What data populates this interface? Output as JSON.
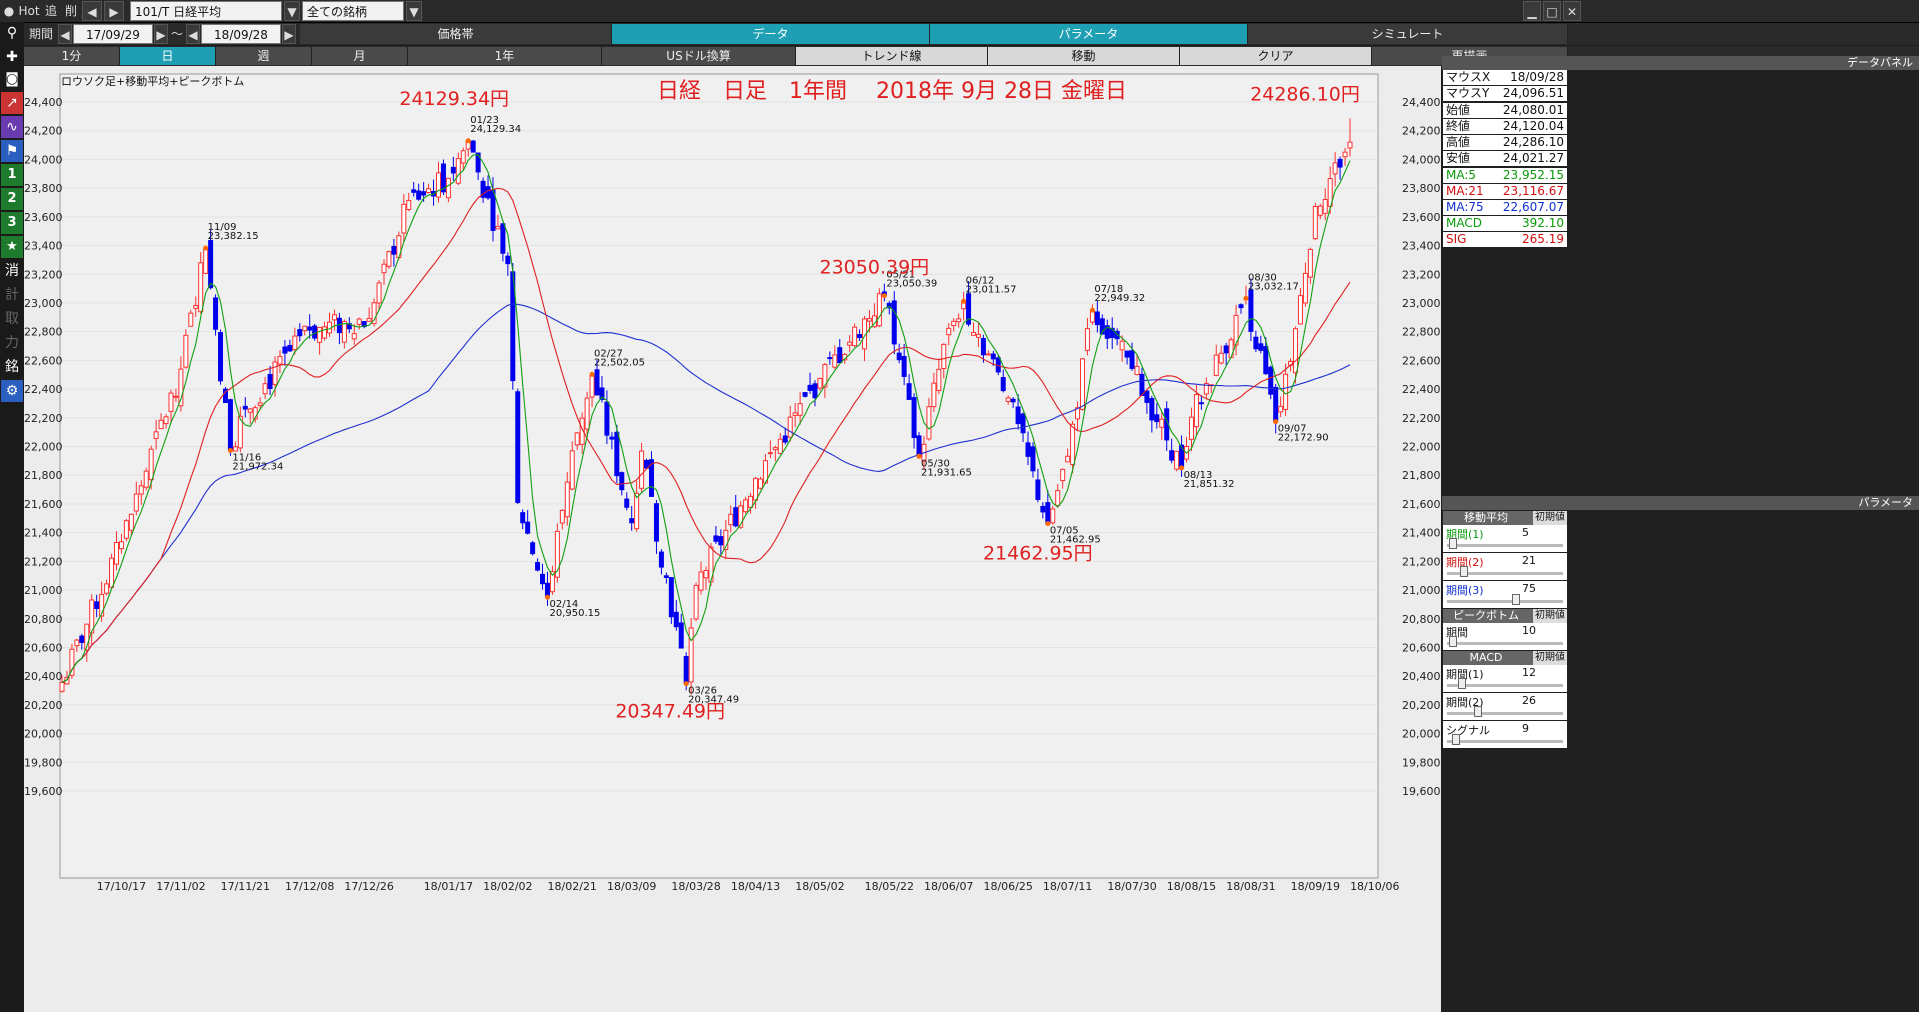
{
  "toolbar_top": {
    "app_label": "Hot",
    "btn_add": "追",
    "btn_del": "削",
    "symbol": "101/T 日経平均",
    "universe": "全ての銘柄"
  },
  "period_bar": {
    "label": "期間",
    "from": "17/09/29",
    "sep": "～",
    "to": "18/09/28"
  },
  "tabs": [
    "価格帯",
    "データ",
    "パラメータ",
    "シミュレート"
  ],
  "subtabs": [
    "1分",
    "日",
    "週",
    "月",
    "1年",
    "USドル換算",
    "トレンド線",
    "移動",
    "クリア",
    "再描画"
  ],
  "side_tools": [
    "search",
    "crosshair",
    "camera",
    "line-chart",
    "oscillator",
    "flag",
    "1",
    "2",
    "3",
    "star",
    "消",
    "銘"
  ],
  "side_tools_dim": [
    "計",
    "取",
    "力"
  ],
  "chart_data": {
    "type": "candlestick",
    "indicator_label": "ロウソク足+移動平均+ピークボトム",
    "title": "日経　日足　1年間　 2018年 9月 28日 金曜日",
    "ylim": [
      19600,
      24400
    ],
    "yticks": [
      "24,400",
      "24,200",
      "24,000",
      "23,800",
      "23,600",
      "23,400",
      "23,200",
      "23,000",
      "22,800",
      "22,600",
      "22,400",
      "22,200",
      "22,000",
      "21,800",
      "21,600",
      "21,400",
      "21,200",
      "21,000",
      "20,800",
      "20,600",
      "20,400",
      "20,200",
      "20,000",
      "19,800",
      "19,600"
    ],
    "xlabels": [
      "17/10/17",
      "17/11/02",
      "17/11/21",
      "17/12/08",
      "17/12/26",
      "18/01/17",
      "18/02/02",
      "18/02/21",
      "18/03/09",
      "18/03/28",
      "18/04/13",
      "18/05/02",
      "18/05/22",
      "18/06/07",
      "18/06/25",
      "18/07/11",
      "18/07/30",
      "18/08/15",
      "18/08/31",
      "18/09/19",
      "18/10/06"
    ],
    "series_colors": {
      "up": "#ff3030",
      "down": "#0000ee",
      "ma5": "#10a010",
      "ma21": "#e02020",
      "ma75": "#2030d0"
    },
    "peaks": [
      {
        "date": "11/09",
        "value": "23,382.15",
        "kind": "peak"
      },
      {
        "date": "11/16",
        "value": "21,972.34",
        "kind": "bottom"
      },
      {
        "date": "01/23",
        "value": "24,129.34",
        "kind": "peak"
      },
      {
        "date": "02/14",
        "value": "20,950.15",
        "kind": "bottom"
      },
      {
        "date": "02/27",
        "value": "22,502.05",
        "kind": "peak"
      },
      {
        "date": "03/26",
        "value": "20,347.49",
        "kind": "bottom"
      },
      {
        "date": "05/21",
        "value": "23,050.39",
        "kind": "peak"
      },
      {
        "date": "05/30",
        "value": "21,931.65",
        "kind": "bottom"
      },
      {
        "date": "06/12",
        "value": "23,011.57",
        "kind": "peak"
      },
      {
        "date": "07/05",
        "value": "21,462.95",
        "kind": "bottom"
      },
      {
        "date": "07/18",
        "value": "22,949.32",
        "kind": "peak"
      },
      {
        "date": "08/13",
        "value": "21,851.32",
        "kind": "bottom"
      },
      {
        "date": "08/30",
        "value": "23,032.17",
        "kind": "peak"
      },
      {
        "date": "09/07",
        "value": "22,172.90",
        "kind": "bottom"
      }
    ],
    "annotations": [
      {
        "text": "24129.34円",
        "anchor": "01/23"
      },
      {
        "text": "23050.39円",
        "anchor": "05/21"
      },
      {
        "text": "20347.49円",
        "anchor": "03/26"
      },
      {
        "text": "21462.95円",
        "anchor": "07/05"
      },
      {
        "text": "24286.10円",
        "anchor": "09/28"
      }
    ],
    "ohlc_keypoints": [
      [
        "17/09/29",
        20356
      ],
      [
        "17/10/17",
        21336
      ],
      [
        "17/11/02",
        22539
      ],
      [
        "17/11/09",
        23382
      ],
      [
        "17/11/16",
        21972
      ],
      [
        "17/11/21",
        22261
      ],
      [
        "17/12/08",
        22811
      ],
      [
        "17/12/26",
        22892
      ],
      [
        "18/01/05",
        23714
      ],
      [
        "18/01/17",
        23868
      ],
      [
        "18/01/23",
        24129
      ],
      [
        "18/02/02",
        23274
      ],
      [
        "18/02/06",
        21610
      ],
      [
        "18/02/14",
        20950
      ],
      [
        "18/02/21",
        21970
      ],
      [
        "18/02/27",
        22502
      ],
      [
        "18/03/09",
        21469
      ],
      [
        "18/03/13",
        21968
      ],
      [
        "18/03/26",
        20347
      ],
      [
        "18/03/28",
        21032
      ],
      [
        "18/04/13",
        21778
      ],
      [
        "18/05/02",
        22473
      ],
      [
        "18/05/21",
        23050
      ],
      [
        "18/05/30",
        21931
      ],
      [
        "18/06/07",
        22823
      ],
      [
        "18/06/12",
        23011
      ],
      [
        "18/06/25",
        22338
      ],
      [
        "18/07/05",
        21462
      ],
      [
        "18/07/11",
        21932
      ],
      [
        "18/07/18",
        22949
      ],
      [
        "18/07/30",
        22544
      ],
      [
        "18/08/13",
        21851
      ],
      [
        "18/08/15",
        22204
      ],
      [
        "18/08/30",
        23032
      ],
      [
        "18/09/07",
        22172
      ],
      [
        "18/09/13",
        22821
      ],
      [
        "18/09/19",
        23672
      ],
      [
        "18/09/28",
        24120
      ]
    ],
    "last_day": {
      "open": 24080.01,
      "high": 24286.1,
      "low": 24021.27,
      "close": 24120.04
    }
  },
  "data_panel": {
    "title": "データパネル",
    "rows": [
      {
        "k": "マウスX",
        "v": "18/09/28",
        "c": "#111"
      },
      {
        "k": "マウスY",
        "v": "24,096.51",
        "c": "#111"
      },
      {
        "k": "始値",
        "v": "24,080.01",
        "c": "#111"
      },
      {
        "k": "終値",
        "v": "24,120.04",
        "c": "#111"
      },
      {
        "k": "高値",
        "v": "24,286.10",
        "c": "#111"
      },
      {
        "k": "安値",
        "v": "24,021.27",
        "c": "#111"
      },
      {
        "k": "MA:5",
        "v": "23,952.15",
        "c": "#0a9a0a"
      },
      {
        "k": "MA:21",
        "v": "23,116.67",
        "c": "#d01010"
      },
      {
        "k": "MA:75",
        "v": "22,607.07",
        "c": "#1030d0"
      },
      {
        "k": "MACD",
        "v": "392.10",
        "c": "#0a9a0a"
      },
      {
        "k": "SIG",
        "v": "265.19",
        "c": "#d01010"
      }
    ]
  },
  "params_panel": {
    "title": "パラメータ",
    "reset": "初期値",
    "groups": [
      {
        "name": "移動平均",
        "rows": [
          {
            "k": "期間(1)",
            "v": "5",
            "c": "#0a9a0a",
            "level": 0.02
          },
          {
            "k": "期間(2)",
            "v": "21",
            "c": "#d01010",
            "level": 0.12
          },
          {
            "k": "期間(3)",
            "v": "75",
            "c": "#1030d0",
            "level": 0.6
          }
        ]
      },
      {
        "name": "ピークボトム",
        "rows": [
          {
            "k": "期間",
            "v": "10",
            "c": "#111",
            "level": 0.02
          }
        ]
      },
      {
        "name": "MACD",
        "rows": [
          {
            "k": "期間(1)",
            "v": "12",
            "c": "#111",
            "level": 0.1
          },
          {
            "k": "期間(2)",
            "v": "26",
            "c": "#111",
            "level": 0.25
          },
          {
            "k": "シグナル",
            "v": "9",
            "c": "#111",
            "level": 0.05
          }
        ]
      }
    ]
  }
}
